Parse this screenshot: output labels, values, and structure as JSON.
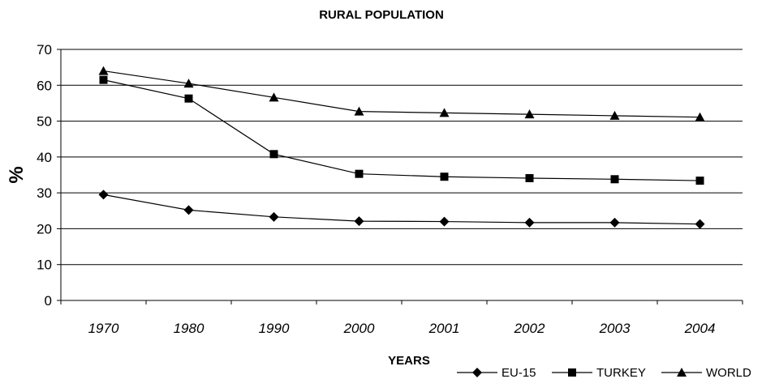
{
  "chart_data": {
    "type": "line",
    "title": "RURAL POPULATION",
    "xlabel": "YEARS",
    "ylabel": "%",
    "categories": [
      "1970",
      "1980",
      "1990",
      "2000",
      "2001",
      "2002",
      "2003",
      "2004"
    ],
    "ylim": [
      0,
      70
    ],
    "yticks": [
      "0",
      "10",
      "20",
      "30",
      "40",
      "50",
      "60",
      "70"
    ],
    "grid": true,
    "legend_position": "bottom-right",
    "series": [
      {
        "name": "EU-15",
        "marker": "diamond",
        "values": [
          29.5,
          25.2,
          23.3,
          22.1,
          22.0,
          21.7,
          21.7,
          21.3
        ]
      },
      {
        "name": "TURKEY",
        "marker": "square",
        "values": [
          61.5,
          56.3,
          40.8,
          35.3,
          34.5,
          34.1,
          33.8,
          33.4
        ]
      },
      {
        "name": "WORLD",
        "marker": "triangle",
        "values": [
          64.0,
          60.5,
          56.6,
          52.7,
          52.3,
          51.9,
          51.5,
          51.1
        ]
      }
    ]
  }
}
